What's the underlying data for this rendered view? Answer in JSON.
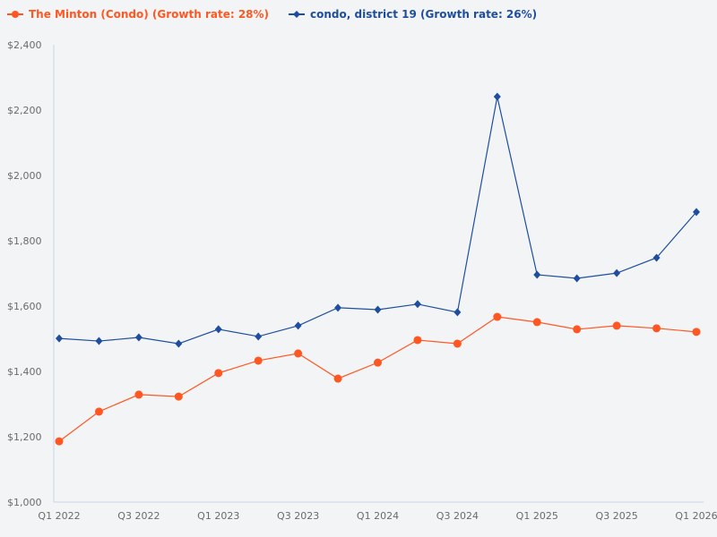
{
  "chart_data": {
    "type": "line",
    "title": "",
    "xlabel": "",
    "ylabel": "",
    "ylim": [
      1000,
      2400
    ],
    "yticks": [
      "$1,000",
      "$1,200",
      "$1,400",
      "$1,600",
      "$1,800",
      "$2,000",
      "$2,200",
      "$2,400"
    ],
    "ytick_values": [
      1000,
      1200,
      1400,
      1600,
      1800,
      2000,
      2200,
      2400
    ],
    "categories": [
      "Q1 2022",
      "Q2 2022",
      "Q3 2022",
      "Q4 2022",
      "Q1 2023",
      "Q2 2023",
      "Q3 2023",
      "Q4 2023",
      "Q1 2024",
      "Q2 2024",
      "Q3 2024",
      "Q4 2024",
      "Q1 2025",
      "Q2 2025",
      "Q3 2025",
      "Q4 2025",
      "Q1 2026"
    ],
    "xtick_labels": [
      "Q1 2022",
      "Q3 2022",
      "Q1 2023",
      "Q3 2023",
      "Q1 2024",
      "Q3 2024",
      "Q1 2025",
      "Q3 2025",
      "Q1 2026"
    ],
    "grid": false,
    "legend_position": "top-left",
    "series": [
      {
        "name": "The Minton (Condo) (Growth rate: 28%)",
        "color": "#ff5722",
        "marker": "circle",
        "values": [
          1186,
          1277,
          1329,
          1323,
          1395,
          1433,
          1455,
          1378,
          1427,
          1496,
          1485,
          1567,
          1551,
          1529,
          1540,
          1532,
          1521
        ]
      },
      {
        "name": "condo, district 19 (Growth rate: 26%)",
        "color": "#1f4e9e",
        "marker": "diamond",
        "values": [
          1501,
          1493,
          1504,
          1485,
          1529,
          1507,
          1540,
          1595,
          1589,
          1606,
          1581,
          2241,
          1696,
          1685,
          1701,
          1748,
          1888
        ]
      }
    ]
  }
}
